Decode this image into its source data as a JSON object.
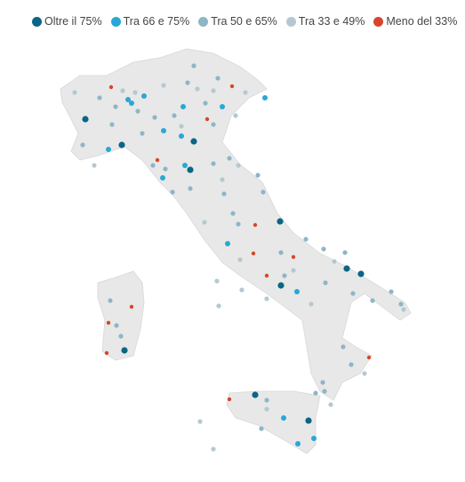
{
  "legend": [
    {
      "name": "Oltre il 75%",
      "color": "#0b6685"
    },
    {
      "name": "Tra 66 e 75%",
      "color": "#29a7d6"
    },
    {
      "name": "Tra 50 e 65%",
      "color": "#8db6c6"
    },
    {
      "name": "Tra 33 e 49%",
      "color": "#b5c8d2"
    },
    {
      "name": "Meno del 33%",
      "color": "#d8452b"
    }
  ]
}
